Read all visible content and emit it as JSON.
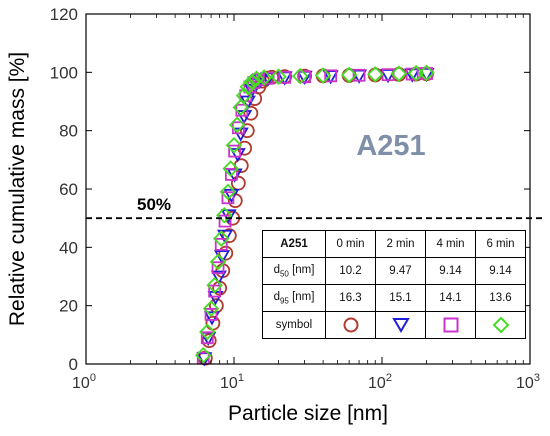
{
  "chart_data": {
    "type": "scatter",
    "title": "A251",
    "xlabel": "Particle size [nm]",
    "ylabel": "Relative cumulative mass [%]",
    "xscale": "log",
    "xlim": [
      1,
      1000
    ],
    "ylim": [
      0,
      120
    ],
    "x_ticks": [
      {
        "base": "10",
        "exp": "0"
      },
      {
        "base": "10",
        "exp": "1"
      },
      {
        "base": "10",
        "exp": "2"
      },
      {
        "base": "10",
        "exp": "3"
      }
    ],
    "y_ticks": [
      "0",
      "20",
      "40",
      "60",
      "80",
      "100",
      "120"
    ],
    "grid": false,
    "reference_line": {
      "y": 50,
      "label": "50%",
      "style": "dashed"
    },
    "series": [
      {
        "name": "0 min",
        "marker": "circle",
        "color": "#b03a2e",
        "d50": 10.2,
        "d95": 16.3,
        "points": [
          [
            6.4,
            2
          ],
          [
            6.8,
            8
          ],
          [
            7.2,
            14
          ],
          [
            7.6,
            20
          ],
          [
            8.0,
            26
          ],
          [
            8.4,
            32
          ],
          [
            8.8,
            38
          ],
          [
            9.3,
            44
          ],
          [
            9.8,
            50
          ],
          [
            10.2,
            56
          ],
          [
            10.7,
            62
          ],
          [
            11.2,
            68
          ],
          [
            11.8,
            74
          ],
          [
            12.3,
            80
          ],
          [
            13.0,
            86
          ],
          [
            13.8,
            91
          ],
          [
            14.7,
            95
          ],
          [
            15.6,
            97
          ],
          [
            16.6,
            98
          ],
          [
            18,
            98.3
          ],
          [
            22,
            98.5
          ],
          [
            30,
            98.7
          ],
          [
            40,
            98.8
          ],
          [
            60,
            98.9
          ],
          [
            90,
            99.1
          ],
          [
            130,
            99.3
          ],
          [
            170,
            99.4
          ],
          [
            200,
            99.5
          ]
        ]
      },
      {
        "name": "2 min",
        "marker": "triangle-down",
        "color": "#1f1fd6",
        "d50": 9.47,
        "d95": 15.1,
        "points": [
          [
            6.3,
            2
          ],
          [
            6.7,
            9
          ],
          [
            7.1,
            16
          ],
          [
            7.5,
            23
          ],
          [
            7.9,
            30
          ],
          [
            8.3,
            37
          ],
          [
            8.7,
            44
          ],
          [
            9.2,
            51
          ],
          [
            9.6,
            58
          ],
          [
            10.1,
            65
          ],
          [
            10.6,
            72
          ],
          [
            11.1,
            79
          ],
          [
            11.7,
            85
          ],
          [
            12.4,
            90
          ],
          [
            13.2,
            94
          ],
          [
            14.1,
            96
          ],
          [
            15.1,
            97.5
          ],
          [
            17,
            98
          ],
          [
            22,
            98.3
          ],
          [
            30,
            98.5
          ],
          [
            45,
            98.7
          ],
          [
            70,
            98.9
          ],
          [
            110,
            99.1
          ],
          [
            160,
            99.3
          ],
          [
            200,
            99.5
          ]
        ]
      },
      {
        "name": "4 min",
        "marker": "square",
        "color": "#cc33cc",
        "d50": 9.14,
        "d95": 14.1,
        "points": [
          [
            6.2,
            2
          ],
          [
            6.6,
            9
          ],
          [
            7.0,
            17
          ],
          [
            7.4,
            25
          ],
          [
            7.8,
            33
          ],
          [
            8.2,
            41
          ],
          [
            8.7,
            49
          ],
          [
            9.1,
            57
          ],
          [
            9.6,
            65
          ],
          [
            10.1,
            73
          ],
          [
            10.7,
            81
          ],
          [
            11.3,
            87
          ],
          [
            12.0,
            92
          ],
          [
            12.8,
            95
          ],
          [
            13.6,
            96.5
          ],
          [
            14.6,
            97.5
          ],
          [
            17,
            98
          ],
          [
            22,
            98.3
          ],
          [
            30,
            98.5
          ],
          [
            45,
            98.8
          ],
          [
            70,
            99.0
          ],
          [
            110,
            99.2
          ],
          [
            160,
            99.4
          ],
          [
            200,
            99.6
          ]
        ]
      },
      {
        "name": "6 min",
        "marker": "diamond",
        "color": "#44dd22",
        "d50": 9.14,
        "d95": 13.6,
        "points": [
          [
            6.2,
            3
          ],
          [
            6.6,
            11
          ],
          [
            7.0,
            19
          ],
          [
            7.4,
            27
          ],
          [
            7.8,
            35
          ],
          [
            8.2,
            43
          ],
          [
            8.6,
            51
          ],
          [
            9.1,
            59
          ],
          [
            9.5,
            67
          ],
          [
            10.0,
            75
          ],
          [
            10.5,
            82
          ],
          [
            11.1,
            88
          ],
          [
            11.7,
            92
          ],
          [
            12.4,
            95
          ],
          [
            13.2,
            96.8
          ],
          [
            14.2,
            97.8
          ],
          [
            16,
            98.2
          ],
          [
            20,
            98.5
          ],
          [
            28,
            98.7
          ],
          [
            40,
            98.9
          ],
          [
            60,
            99.1
          ],
          [
            90,
            99.3
          ],
          [
            130,
            99.5
          ],
          [
            170,
            99.7
          ],
          [
            200,
            99.8
          ]
        ]
      }
    ]
  },
  "table": {
    "header": {
      "label": "A251",
      "cols": [
        "0 min",
        "2 min",
        "4 min",
        "6 min"
      ]
    },
    "rows": [
      {
        "base": "d",
        "sub": "50",
        "unit": " [nm]",
        "values": [
          "10.2",
          "9.47",
          "9.14",
          "9.14"
        ]
      },
      {
        "base": "d",
        "sub": "95",
        "unit": " [nm]",
        "values": [
          "16.3",
          "15.1",
          "14.1",
          "13.6"
        ]
      }
    ],
    "symbol_label": "symbol"
  }
}
